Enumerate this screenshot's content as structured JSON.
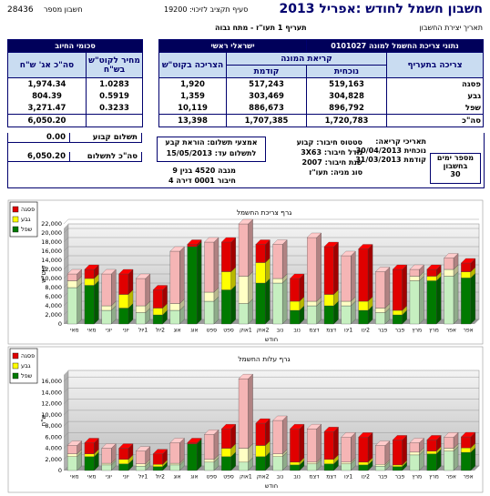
{
  "header": {
    "account": "28436",
    "account_label": "חשבון מספר",
    "budget": "סעיף תקציב לזיכוי: 19200",
    "title": "חשבון חשמל לחודש :אפריל 2013",
    "tariff": "תעריף  1 תעו\"ז - מתח גבוה",
    "created": "תאריך יצירת החשבון"
  },
  "table": {
    "meter_title": "נתוני צריכת החשמל למונה 0101027",
    "meter_type": "ישראלי ראשי",
    "billing_title": "סכומי החיוב",
    "headers": {
      "tariff": "צריכה בתעריף",
      "reading": "קריאת המונה",
      "current": "נוכחית",
      "previous": "קודמת",
      "usage": "הצריכה בקוט\"ש",
      "price": "מחיר לקוט\"ש בש\"ח",
      "total": "סה\"כ אג' ש\"ח"
    },
    "rows": [
      [
        "פסגה",
        "519,163",
        "517,243",
        "1,920",
        "1.0283",
        "1,974.34"
      ],
      [
        "גבע",
        "304,828",
        "303,469",
        "1,359",
        "0.5919",
        "804.39"
      ],
      [
        "שפל",
        "896,792",
        "886,673",
        "10,119",
        "0.3233",
        "3,271.47"
      ],
      [
        "סה\"כ",
        "1,720,783",
        "1,707,385",
        "13,398",
        "",
        "6,050.20"
      ]
    ]
  },
  "info": {
    "days_label": "מספר ימים בחשבון",
    "days": "30",
    "dates_label": "תאריכי קריאה:",
    "current_date": "נוכחית 30/04/2013",
    "previous_date": "קודמת 31/03/2013",
    "status": [
      "סטטוס חיבור: קבוע",
      "גודל חיבור: 3X63",
      "שנת חיבור: 2007",
      "סוג מניה: תעו\"ז"
    ],
    "payment": [
      "אמצעי תשלום: הוראת קבע",
      "לתשלום עד: 15/05/2013"
    ],
    "location": [
      "מגבה  4520   בנין  9",
      "חיבור  0001   דירה  4"
    ],
    "fixed_label": "תשלום קבוע",
    "fixed": "0.00",
    "total_label": "סה\"כ לתשלום",
    "total": "6,050.20"
  },
  "chart_data": [
    {
      "type": "bar",
      "stacked": true,
      "title": "גרף צריכת החשמל",
      "y_label": "קוט\"ש",
      "x_label": "חודש",
      "categories": [
        "מאי",
        "מאי",
        "יוני",
        "יוני",
        "1יול",
        "2יול",
        "אוג",
        "אוג",
        "ספט",
        "ספט",
        "1אוק",
        "2אוק",
        "נוב",
        "נוב",
        "דצמ",
        "דצמ",
        "1ינו",
        "2ינו",
        "פבר",
        "פבר",
        "מרץ",
        "מרץ",
        "אפר",
        "אפר"
      ],
      "series": [
        {
          "name": "פסגה",
          "color": "#e00000",
          "light_color": "#f5b5b5",
          "values": [
            1500,
            2000,
            7000,
            4500,
            6000,
            4000,
            11500,
            500,
            11000,
            6500,
            11500,
            4000,
            7500,
            5000,
            14000,
            10500,
            10000,
            11500,
            8000,
            9000,
            1500,
            1500,
            2500,
            1920
          ]
        },
        {
          "name": "גבע",
          "color": "#ffff00",
          "light_color": "#ffffc4",
          "values": [
            1500,
            1500,
            1000,
            3000,
            1500,
            1500,
            1500,
            0,
            2000,
            4000,
            6000,
            4500,
            1000,
            2000,
            1000,
            2500,
            1000,
            2000,
            1000,
            1000,
            1000,
            1000,
            1500,
            1359
          ]
        },
        {
          "name": "שפל",
          "color": "#007a00",
          "light_color": "#c6efc0",
          "values": [
            8000,
            8500,
            3000,
            3500,
            2500,
            2000,
            3000,
            17000,
            5000,
            7500,
            4500,
            9000,
            9000,
            3000,
            4000,
            4000,
            4000,
            3000,
            2500,
            2000,
            9500,
            9500,
            10500,
            10119
          ]
        }
      ],
      "ylim": [
        0,
        22000
      ],
      "yticks": [
        0,
        {
          "value": 2000,
          "label": "2,000"
        },
        {
          "value": 4000,
          "label": "4,000"
        },
        {
          "value": 6000,
          "label": "6,000"
        },
        {
          "value": 8000,
          "label": "8,000"
        },
        {
          "value": 10000,
          "label": "10,000"
        },
        {
          "value": 12000,
          "label": "12,000"
        },
        {
          "value": 14000,
          "label": "14,000"
        },
        {
          "value": 16000,
          "label": "16,000"
        },
        {
          "value": 18000,
          "label": "18,000"
        },
        {
          "value": 20000,
          "label": "20,000"
        },
        {
          "value": 22000,
          "label": "22,000"
        }
      ],
      "grid": true,
      "legend": "top-left"
    },
    {
      "type": "bar",
      "stacked": true,
      "title": "גרף עלות החשמל",
      "y_label": "ש\"ח",
      "x_label": "חודש",
      "categories": [
        "מאי",
        "מאי",
        "יוני",
        "יוני",
        "1יול",
        "2יול",
        "אוג",
        "אוג",
        "ספט",
        "ספט",
        "1אוק",
        "2אוק",
        "נוב",
        "נוב",
        "דצמ",
        "דצמ",
        "1ינו",
        "2ינו",
        "פבר",
        "פבר",
        "מרץ",
        "מרץ",
        "אפר",
        "אפר"
      ],
      "series": [
        {
          "name": "פסגה",
          "color": "#e00000",
          "light_color": "#f5b5b5",
          "values": [
            1500,
            2000,
            2700,
            2000,
            2300,
            1900,
            3700,
            200,
            4500,
            3500,
            12500,
            4000,
            6000,
            6000,
            6000,
            5000,
            4500,
            4500,
            3400,
            4500,
            1700,
            2000,
            2000,
            1974.34
          ]
        },
        {
          "name": "גבע",
          "color": "#ffff00",
          "light_color": "#ffffc4",
          "values": [
            500,
            500,
            300,
            800,
            400,
            400,
            300,
            0,
            500,
            1500,
            2500,
            2000,
            500,
            500,
            300,
            800,
            300,
            500,
            300,
            300,
            500,
            500,
            500,
            804.39
          ]
        },
        {
          "name": "שפל",
          "color": "#007a00",
          "light_color": "#c6efc0",
          "values": [
            2500,
            2500,
            1000,
            1200,
            800,
            700,
            1000,
            4800,
            1500,
            2500,
            1500,
            2500,
            2500,
            1000,
            1200,
            1200,
            1200,
            1000,
            800,
            700,
            2800,
            3000,
            3500,
            3271.47
          ]
        }
      ],
      "ylim": [
        0,
        18000
      ],
      "yticks": [
        0,
        {
          "value": 2000,
          "label": "2,000"
        },
        {
          "value": 4000,
          "label": "4,000"
        },
        {
          "value": 6000,
          "label": "6,000"
        },
        {
          "value": 8000,
          "label": "8,000"
        },
        {
          "value": 10000,
          "label": "10,000"
        },
        {
          "value": 12000,
          "label": "12,000"
        },
        {
          "value": 14000,
          "label": "14,000"
        },
        {
          "value": 16000,
          "label": "16,000"
        }
      ],
      "grid": true,
      "legend": "top-left"
    }
  ]
}
